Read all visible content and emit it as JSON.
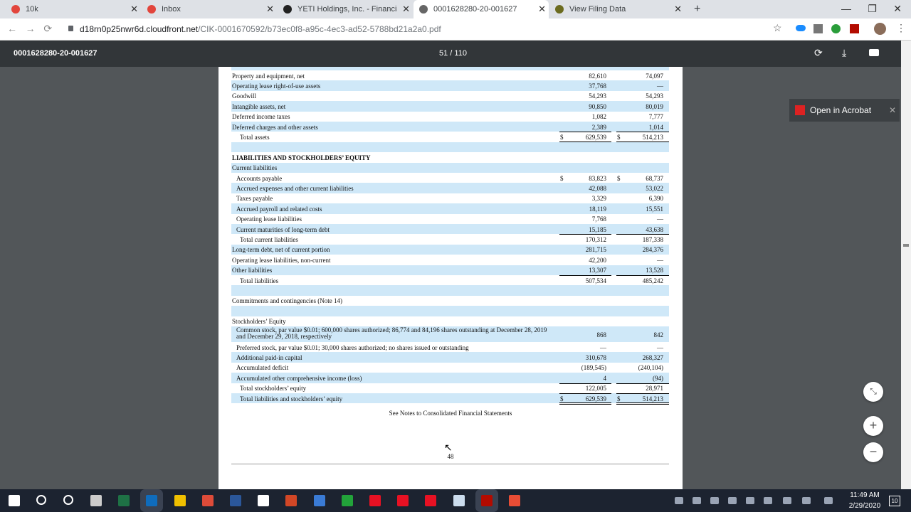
{
  "browser": {
    "tabs": [
      "10k",
      "Inbox",
      "YETI Holdings, Inc. - Financials - ",
      "0001628280-20-001627",
      "View Filing Data"
    ],
    "url_host": "d18rn0p25nwr6d.cloudfront.net",
    "url_path": "/CIK-0001670592/b73ec0f8-a95c-4ec3-ad52-5788bd21a2a0.pdf"
  },
  "toolbar": {
    "title": "0001628280-20-001627",
    "page": "51 / 110"
  },
  "acrobat": {
    "label": "Open in Acrobat"
  },
  "document": {
    "rows": [
      {
        "label": "Property and equipment, net",
        "v1": "82,610",
        "v2": "74,097"
      },
      {
        "label": "Operating lease right-of-use assets",
        "v1": "37,768",
        "v2": "—"
      },
      {
        "label": "Goodwill",
        "v1": "54,293",
        "v2": "54,293"
      },
      {
        "label": "Intangible assets, net",
        "v1": "90,850",
        "v2": "80,019"
      },
      {
        "label": "Deferred income taxes",
        "v1": "1,082",
        "v2": "7,777"
      },
      {
        "label": "Deferred charges and other assets",
        "v1": "2,389",
        "v2": "1,014"
      },
      {
        "label": "Total assets",
        "s1": "$",
        "v1": "629,539",
        "s2": "$",
        "v2": "514,213"
      },
      {
        "label": "LIABILITIES AND STOCKHOLDERS’ EQUITY"
      },
      {
        "label": "Current liabilities"
      },
      {
        "label": "Accounts payable",
        "s1": "$",
        "v1": "83,823",
        "s2": "$",
        "v2": "68,737"
      },
      {
        "label": "Accrued expenses and other current liabilities",
        "v1": "42,088",
        "v2": "53,022"
      },
      {
        "label": "Taxes payable",
        "v1": "3,329",
        "v2": "6,390"
      },
      {
        "label": "Accrued payroll and related costs",
        "v1": "18,119",
        "v2": "15,551"
      },
      {
        "label": "Operating lease liabilities",
        "v1": "7,768",
        "v2": "—"
      },
      {
        "label": "Current maturities of long-term debt",
        "v1": "15,185",
        "v2": "43,638"
      },
      {
        "label": "Total current liabilities",
        "v1": "170,312",
        "v2": "187,338"
      },
      {
        "label": "Long-term debt, net of current portion",
        "v1": "281,715",
        "v2": "284,376"
      },
      {
        "label": "Operating lease liabilities, non-current",
        "v1": "42,200",
        "v2": "—"
      },
      {
        "label": "Other liabilities",
        "v1": "13,307",
        "v2": "13,528"
      },
      {
        "label": "Total liabilities",
        "v1": "507,534",
        "v2": "485,242"
      },
      {
        "label": "Commitments and contingencies (Note 14)"
      },
      {
        "label": "Stockholders’ Equity"
      },
      {
        "label": "Common stock, par value $0.01; 600,000 shares authorized; 86,774 and 84,196 shares outstanding at December 28, 2019 and December 29, 2018, respectively",
        "v1": "868",
        "v2": "842"
      },
      {
        "label": "Preferred stock, par value $0.01; 30,000 shares authorized; no shares issued or outstanding",
        "v1": "—",
        "v2": "—"
      },
      {
        "label": "Additional paid-in capital",
        "v1": "310,678",
        "v2": "268,327"
      },
      {
        "label": "Accumulated deficit",
        "v1": "(189,545)",
        "v2": "(240,104)"
      },
      {
        "label": "Accumulated other comprehensive income (loss)",
        "v1": "4",
        "v2": "(94)"
      },
      {
        "label": "Total stockholders’ equity",
        "v1": "122,005",
        "v2": "28,971"
      },
      {
        "label": "Total liabilities and stockholders’ equity",
        "s1": "$",
        "v1": "629,539",
        "s2": "$",
        "v2": "514,213"
      }
    ],
    "note": "See Notes to Consolidated Financial Statements",
    "page_number": "48"
  },
  "taskbar": {
    "time": "11:49 AM",
    "date": "2/29/2020",
    "notifications": "10"
  }
}
